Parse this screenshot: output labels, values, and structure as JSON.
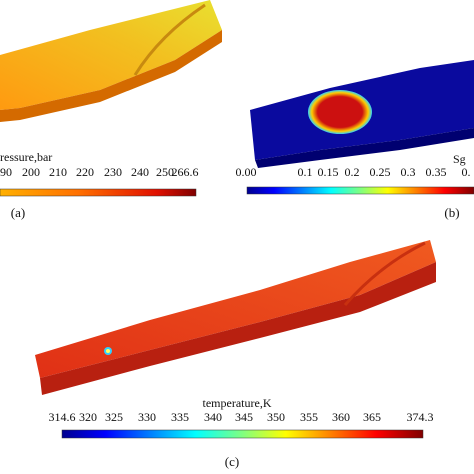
{
  "panels": [
    {
      "label": "(a)",
      "colorbar_title": "ressure,bar",
      "ticks": [
        "90",
        "200",
        "210",
        "220",
        "230",
        "240",
        "250",
        "266.6"
      ]
    },
    {
      "label": "(b)",
      "colorbar_title": "Sg",
      "ticks": [
        "0.00",
        "0.1",
        "0.15",
        "0.2",
        "0.25",
        "0.3",
        "0.35",
        "0."
      ]
    },
    {
      "label": "(c)",
      "colorbar_title": "temperature,K",
      "ticks": [
        "314.6",
        "320",
        "325",
        "330",
        "335",
        "340",
        "345",
        "350",
        "355",
        "360",
        "365",
        "374.3"
      ]
    }
  ]
}
